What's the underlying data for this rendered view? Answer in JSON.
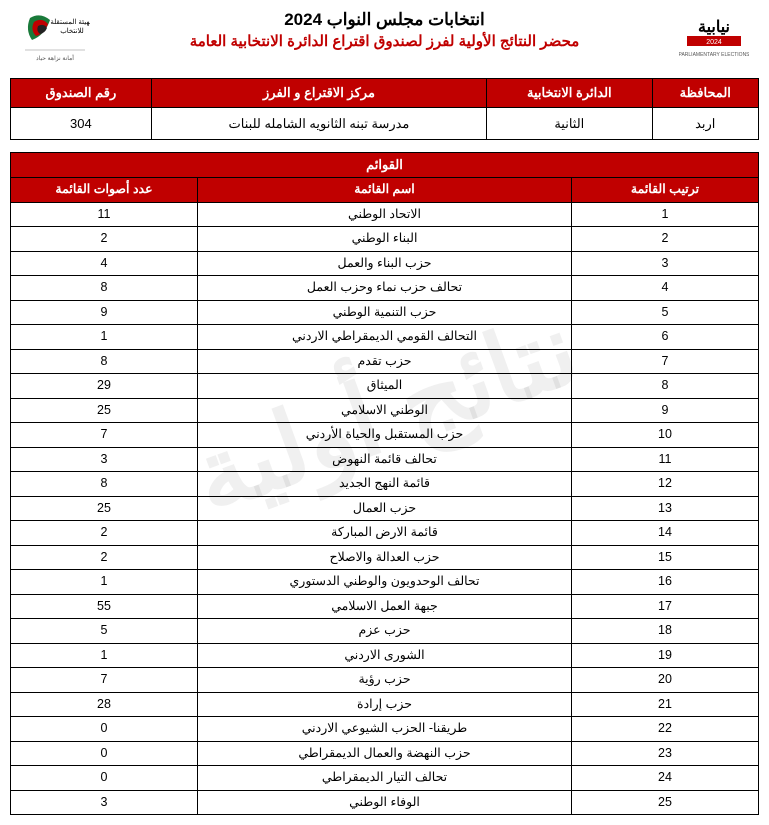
{
  "header": {
    "main_title": "انتخابات مجلس النواب 2024",
    "sub_title": "محضر النتائج الأولية لفرز لصندوق اقتراع الدائرة الانتخابية العامة"
  },
  "info": {
    "headers": {
      "governorate": "المحافظة",
      "district": "الدائرة الانتخابية",
      "center": "مركز الاقتراع و الفرز",
      "box": "رقم الصندوق"
    },
    "values": {
      "governorate": "اربد",
      "district": "الثانية",
      "center": "مدرسة تبنه الثانويه الشامله للبنات",
      "box": "304"
    }
  },
  "results": {
    "caption": "القوائم",
    "headers": {
      "rank": "ترتيب القائمة",
      "name": "اسم القائمة",
      "votes": "عدد أصوات القائمة"
    },
    "rows": [
      {
        "rank": "1",
        "name": "الاتحاد الوطني",
        "votes": "11"
      },
      {
        "rank": "2",
        "name": "البناء الوطني",
        "votes": "2"
      },
      {
        "rank": "3",
        "name": "حزب البناء والعمل",
        "votes": "4"
      },
      {
        "rank": "4",
        "name": "تحالف حزب نماء وحزب العمل",
        "votes": "8"
      },
      {
        "rank": "5",
        "name": "حزب التنمية الوطني",
        "votes": "9"
      },
      {
        "rank": "6",
        "name": "التحالف القومي الديمقراطي الاردني",
        "votes": "1"
      },
      {
        "rank": "7",
        "name": "حزب تقدم",
        "votes": "8"
      },
      {
        "rank": "8",
        "name": "الميثاق",
        "votes": "29"
      },
      {
        "rank": "9",
        "name": "الوطني الاسلامي",
        "votes": "25"
      },
      {
        "rank": "10",
        "name": "حزب المستقبل والحياة الأردني",
        "votes": "7"
      },
      {
        "rank": "11",
        "name": "تحالف قائمة النهوض",
        "votes": "3"
      },
      {
        "rank": "12",
        "name": "قائمة النهج الجديد",
        "votes": "8"
      },
      {
        "rank": "13",
        "name": "حزب العمال",
        "votes": "25"
      },
      {
        "rank": "14",
        "name": "قائمة الارض المباركة",
        "votes": "2"
      },
      {
        "rank": "15",
        "name": "حزب العدالة والاصلاح",
        "votes": "2"
      },
      {
        "rank": "16",
        "name": "تحالف الوحدويون والوطني الدستوري",
        "votes": "1"
      },
      {
        "rank": "17",
        "name": "جبهة العمل الاسلامي",
        "votes": "55"
      },
      {
        "rank": "18",
        "name": "حزب عزم",
        "votes": "5"
      },
      {
        "rank": "19",
        "name": "الشورى الاردني",
        "votes": "1"
      },
      {
        "rank": "20",
        "name": "حزب رؤية",
        "votes": "7"
      },
      {
        "rank": "21",
        "name": "حزب إرادة",
        "votes": "28"
      },
      {
        "rank": "22",
        "name": "طريقنا- الحزب الشيوعي الاردني",
        "votes": "0"
      },
      {
        "rank": "23",
        "name": "حزب النهضة والعمال الديمقراطي",
        "votes": "0"
      },
      {
        "rank": "24",
        "name": "تحالف التيار الديمقراطي",
        "votes": "0"
      },
      {
        "rank": "25",
        "name": "الوفاء الوطني",
        "votes": "3"
      }
    ]
  },
  "watermark": "نتائج أولية",
  "colors": {
    "accent": "#c00000",
    "border": "#000000",
    "bg": "#ffffff"
  }
}
